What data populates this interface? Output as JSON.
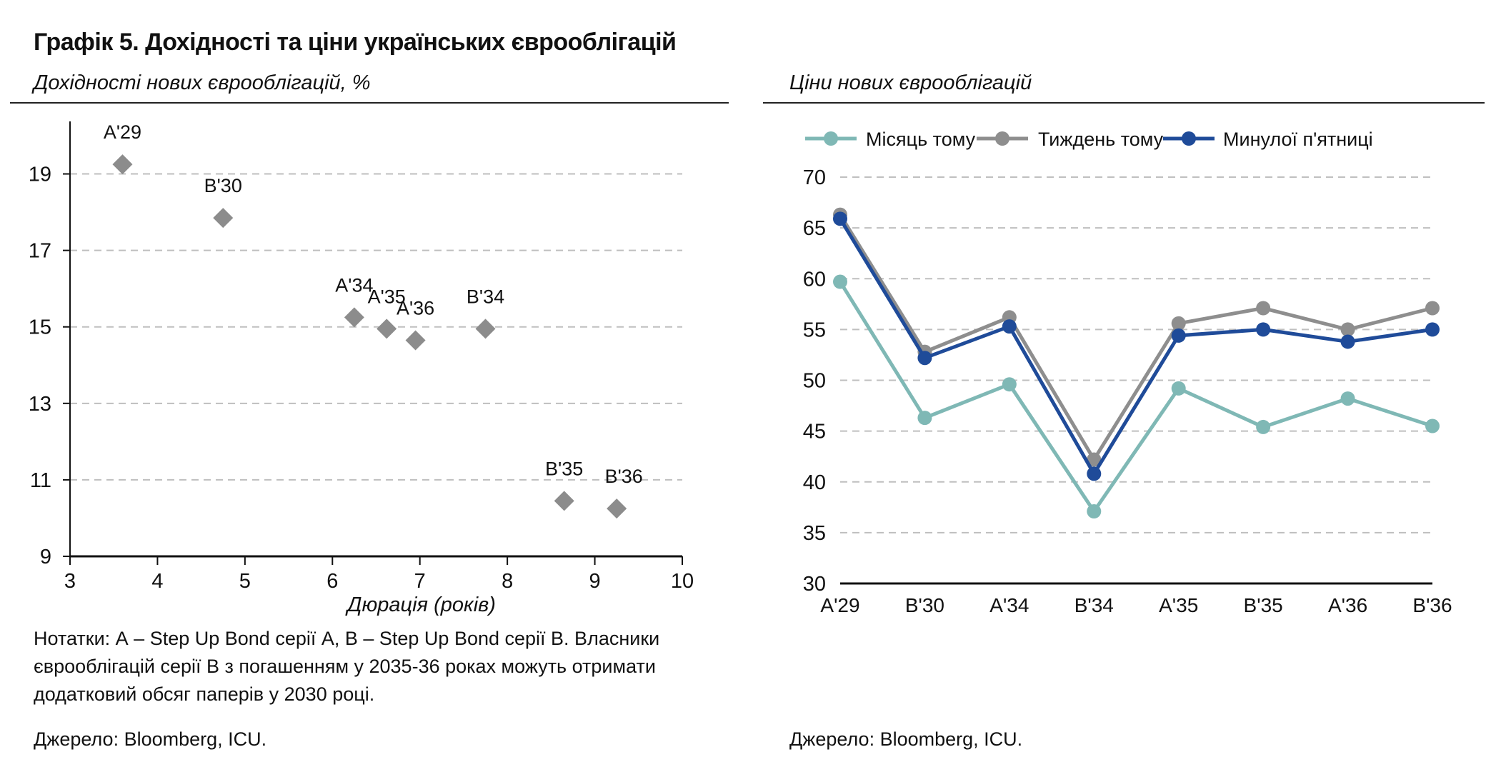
{
  "title": "Графік 5. Дохідності та ціни українських єврооблігацій",
  "left_panel": {
    "subtitle": "Дохідності нових єврооблігацій, %",
    "note": "Нотатки: А – Step Up Bond серії А, В – Step Up Bond серії В. Власники єврооблігацій серії В з погашенням у 2035-36 роках можуть отримати додатковий обсяг паперів у 2030 році.",
    "source": "Джерело: Bloomberg, ICU."
  },
  "right_panel": {
    "subtitle": "Ціни нових єврооблігацій",
    "source": "Джерело: Bloomberg, ICU."
  },
  "colors": {
    "marker_gray": "#8c8c8c",
    "month_ago": "#7fb8b5",
    "week_ago": "#8e8e8e",
    "last_friday": "#1f4b99",
    "grid": "#bfbfbf"
  },
  "chart_data": [
    {
      "type": "scatter",
      "title": "Дохідності нових єврооблігацій, %",
      "xlabel": "Дюрація (років)",
      "ylabel": "",
      "xlim": [
        3,
        10
      ],
      "ylim": [
        9,
        20
      ],
      "xticks": [
        3,
        4,
        5,
        6,
        7,
        8,
        9,
        10
      ],
      "yticks": [
        9,
        11,
        13,
        15,
        17,
        19
      ],
      "grid": "horizontal dashed",
      "points": [
        {
          "label": "A'29",
          "x": 3.6,
          "y": 19.25
        },
        {
          "label": "B'30",
          "x": 4.75,
          "y": 17.85
        },
        {
          "label": "A'34",
          "x": 6.25,
          "y": 15.25
        },
        {
          "label": "A'35",
          "x": 6.62,
          "y": 14.95
        },
        {
          "label": "A'36",
          "x": 6.95,
          "y": 14.65
        },
        {
          "label": "B'34",
          "x": 7.75,
          "y": 14.95
        },
        {
          "label": "B'35",
          "x": 8.65,
          "y": 10.45
        },
        {
          "label": "B'36",
          "x": 9.25,
          "y": 10.25
        }
      ]
    },
    {
      "type": "line",
      "title": "Ціни нових єврооблігацій",
      "categories": [
        "A'29",
        "B'30",
        "A'34",
        "B'34",
        "A'35",
        "B'35",
        "A'36",
        "B'36"
      ],
      "ylim": [
        30,
        70
      ],
      "yticks": [
        30,
        35,
        40,
        45,
        50,
        55,
        60,
        65,
        70
      ],
      "grid": "horizontal dashed",
      "legend": "top",
      "series": [
        {
          "name": "Місяць тому",
          "color": "#7fb8b5",
          "values": [
            59.7,
            46.3,
            49.6,
            37.1,
            49.2,
            45.4,
            48.2,
            45.5
          ]
        },
        {
          "name": "Тиждень тому",
          "color": "#8e8e8e",
          "values": [
            66.3,
            52.8,
            56.2,
            42.2,
            55.6,
            57.1,
            55.0,
            57.1
          ]
        },
        {
          "name": "Минулої п'ятниці",
          "color": "#1f4b99",
          "values": [
            65.9,
            52.2,
            55.3,
            40.8,
            54.4,
            55.0,
            53.8,
            55.0
          ]
        }
      ]
    }
  ]
}
